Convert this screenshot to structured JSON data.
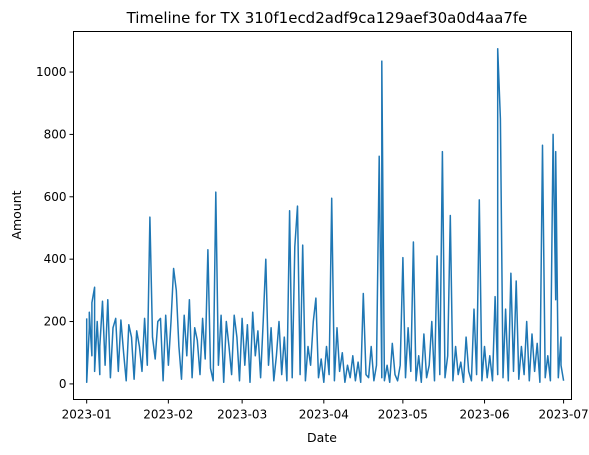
{
  "chart_data": {
    "type": "line",
    "title": "Timeline for TX 310f1ecd2adf9ca129aef30a0d4aa7fe",
    "xlabel": "Date",
    "ylabel": "Amount",
    "xlim": [
      "2022-12-27",
      "2023-07-04"
    ],
    "ylim": [
      -50,
      1130
    ],
    "x_ticks": [
      "2023-01",
      "2023-02",
      "2023-03",
      "2023-04",
      "2023-05",
      "2023-06",
      "2023-07"
    ],
    "y_ticks": [
      0,
      200,
      400,
      600,
      800,
      1000
    ],
    "grid": false,
    "color": "#1f77b4",
    "series": [
      {
        "points": [
          [
            "2023-01-01",
            210
          ],
          [
            "2023-01-01",
            5
          ],
          [
            "2023-01-02",
            180
          ],
          [
            "2023-01-02",
            230
          ],
          [
            "2023-01-03",
            90
          ],
          [
            "2023-01-03",
            260
          ],
          [
            "2023-01-04",
            310
          ],
          [
            "2023-01-04",
            40
          ],
          [
            "2023-01-05",
            200
          ],
          [
            "2023-01-06",
            30
          ],
          [
            "2023-01-06",
            120
          ],
          [
            "2023-01-07",
            265
          ],
          [
            "2023-01-08",
            60
          ],
          [
            "2023-01-09",
            270
          ],
          [
            "2023-01-10",
            20
          ],
          [
            "2023-01-11",
            180
          ],
          [
            "2023-01-12",
            210
          ],
          [
            "2023-01-13",
            40
          ],
          [
            "2023-01-14",
            205
          ],
          [
            "2023-01-15",
            100
          ],
          [
            "2023-01-16",
            10
          ],
          [
            "2023-01-17",
            190
          ],
          [
            "2023-01-18",
            150
          ],
          [
            "2023-01-19",
            15
          ],
          [
            "2023-01-20",
            170
          ],
          [
            "2023-01-21",
            120
          ],
          [
            "2023-01-22",
            40
          ],
          [
            "2023-01-23",
            210
          ],
          [
            "2023-01-24",
            60
          ],
          [
            "2023-01-25",
            535
          ],
          [
            "2023-01-26",
            150
          ],
          [
            "2023-01-27",
            80
          ],
          [
            "2023-01-28",
            200
          ],
          [
            "2023-01-29",
            210
          ],
          [
            "2023-01-30",
            10
          ],
          [
            "2023-01-31",
            220
          ],
          [
            "2023-02-01",
            60
          ],
          [
            "2023-02-02",
            200
          ],
          [
            "2023-02-03",
            370
          ],
          [
            "2023-02-04",
            300
          ],
          [
            "2023-02-05",
            120
          ],
          [
            "2023-02-06",
            15
          ],
          [
            "2023-02-07",
            220
          ],
          [
            "2023-02-08",
            90
          ],
          [
            "2023-02-09",
            270
          ],
          [
            "2023-02-10",
            20
          ],
          [
            "2023-02-11",
            180
          ],
          [
            "2023-02-12",
            140
          ],
          [
            "2023-02-13",
            30
          ],
          [
            "2023-02-14",
            210
          ],
          [
            "2023-02-15",
            80
          ],
          [
            "2023-02-16",
            430
          ],
          [
            "2023-02-17",
            50
          ],
          [
            "2023-02-18",
            10
          ],
          [
            "2023-02-19",
            615
          ],
          [
            "2023-02-20",
            60
          ],
          [
            "2023-02-21",
            220
          ],
          [
            "2023-02-22",
            5
          ],
          [
            "2023-02-23",
            200
          ],
          [
            "2023-02-24",
            120
          ],
          [
            "2023-02-25",
            30
          ],
          [
            "2023-02-26",
            220
          ],
          [
            "2023-02-27",
            150
          ],
          [
            "2023-02-28",
            10
          ],
          [
            "2023-03-01",
            210
          ],
          [
            "2023-03-02",
            60
          ],
          [
            "2023-03-03",
            190
          ],
          [
            "2023-03-04",
            5
          ],
          [
            "2023-03-05",
            230
          ],
          [
            "2023-03-06",
            90
          ],
          [
            "2023-03-07",
            170
          ],
          [
            "2023-03-08",
            20
          ],
          [
            "2023-03-09",
            200
          ],
          [
            "2023-03-10",
            400
          ],
          [
            "2023-03-11",
            60
          ],
          [
            "2023-03-12",
            180
          ],
          [
            "2023-03-13",
            10
          ],
          [
            "2023-03-14",
            90
          ],
          [
            "2023-03-15",
            200
          ],
          [
            "2023-03-16",
            30
          ],
          [
            "2023-03-17",
            150
          ],
          [
            "2023-03-18",
            10
          ],
          [
            "2023-03-19",
            555
          ],
          [
            "2023-03-20",
            20
          ],
          [
            "2023-03-21",
            440
          ],
          [
            "2023-03-22",
            570
          ],
          [
            "2023-03-23",
            30
          ],
          [
            "2023-03-24",
            445
          ],
          [
            "2023-03-25",
            10
          ],
          [
            "2023-03-26",
            120
          ],
          [
            "2023-03-27",
            60
          ],
          [
            "2023-03-28",
            200
          ],
          [
            "2023-03-29",
            275
          ],
          [
            "2023-03-30",
            20
          ],
          [
            "2023-03-31",
            80
          ],
          [
            "2023-04-01",
            5
          ],
          [
            "2023-04-02",
            120
          ],
          [
            "2023-04-03",
            30
          ],
          [
            "2023-04-04",
            595
          ],
          [
            "2023-04-05",
            10
          ],
          [
            "2023-04-06",
            180
          ],
          [
            "2023-04-07",
            40
          ],
          [
            "2023-04-08",
            100
          ],
          [
            "2023-04-09",
            5
          ],
          [
            "2023-04-10",
            60
          ],
          [
            "2023-04-11",
            20
          ],
          [
            "2023-04-12",
            90
          ],
          [
            "2023-04-13",
            10
          ],
          [
            "2023-04-14",
            70
          ],
          [
            "2023-04-15",
            5
          ],
          [
            "2023-04-16",
            290
          ],
          [
            "2023-04-17",
            30
          ],
          [
            "2023-04-18",
            20
          ],
          [
            "2023-04-19",
            120
          ],
          [
            "2023-04-20",
            10
          ],
          [
            "2023-04-21",
            60
          ],
          [
            "2023-04-22",
            730
          ],
          [
            "2023-04-23",
            20
          ],
          [
            "2023-04-23",
            1035
          ],
          [
            "2023-04-24",
            10
          ],
          [
            "2023-04-25",
            60
          ],
          [
            "2023-04-26",
            5
          ],
          [
            "2023-04-27",
            130
          ],
          [
            "2023-04-28",
            30
          ],
          [
            "2023-04-29",
            10
          ],
          [
            "2023-04-30",
            60
          ],
          [
            "2023-05-01",
            405
          ],
          [
            "2023-05-02",
            20
          ],
          [
            "2023-05-03",
            180
          ],
          [
            "2023-05-04",
            40
          ],
          [
            "2023-05-05",
            455
          ],
          [
            "2023-05-06",
            10
          ],
          [
            "2023-05-07",
            90
          ],
          [
            "2023-05-08",
            5
          ],
          [
            "2023-05-09",
            160
          ],
          [
            "2023-05-10",
            20
          ],
          [
            "2023-05-11",
            60
          ],
          [
            "2023-05-12",
            200
          ],
          [
            "2023-05-13",
            10
          ],
          [
            "2023-05-14",
            410
          ],
          [
            "2023-05-15",
            30
          ],
          [
            "2023-05-16",
            745
          ],
          [
            "2023-05-17",
            20
          ],
          [
            "2023-05-18",
            90
          ],
          [
            "2023-05-19",
            540
          ],
          [
            "2023-05-20",
            10
          ],
          [
            "2023-05-21",
            120
          ],
          [
            "2023-05-22",
            30
          ],
          [
            "2023-05-23",
            70
          ],
          [
            "2023-05-24",
            5
          ],
          [
            "2023-05-25",
            150
          ],
          [
            "2023-05-26",
            40
          ],
          [
            "2023-05-27",
            10
          ],
          [
            "2023-05-28",
            240
          ],
          [
            "2023-05-29",
            30
          ],
          [
            "2023-05-30",
            590
          ],
          [
            "2023-05-31",
            10
          ],
          [
            "2023-06-01",
            120
          ],
          [
            "2023-06-02",
            20
          ],
          [
            "2023-06-03",
            90
          ],
          [
            "2023-06-04",
            10
          ],
          [
            "2023-06-05",
            280
          ],
          [
            "2023-06-06",
            30
          ],
          [
            "2023-06-06",
            1075
          ],
          [
            "2023-06-07",
            850
          ],
          [
            "2023-06-08",
            20
          ],
          [
            "2023-06-09",
            240
          ],
          [
            "2023-06-10",
            10
          ],
          [
            "2023-06-11",
            355
          ],
          [
            "2023-06-12",
            40
          ],
          [
            "2023-06-13",
            330
          ],
          [
            "2023-06-14",
            15
          ],
          [
            "2023-06-15",
            120
          ],
          [
            "2023-06-16",
            30
          ],
          [
            "2023-06-17",
            200
          ],
          [
            "2023-06-18",
            10
          ],
          [
            "2023-06-19",
            160
          ],
          [
            "2023-06-20",
            40
          ],
          [
            "2023-06-21",
            130
          ],
          [
            "2023-06-22",
            5
          ],
          [
            "2023-06-23",
            765
          ],
          [
            "2023-06-24",
            20
          ],
          [
            "2023-06-25",
            90
          ],
          [
            "2023-06-26",
            10
          ],
          [
            "2023-06-27",
            800
          ],
          [
            "2023-06-28",
            270
          ],
          [
            "2023-06-28",
            745
          ],
          [
            "2023-06-29",
            20
          ],
          [
            "2023-06-30",
            150
          ],
          [
            "2023-06-30",
            60
          ],
          [
            "2023-07-01",
            10
          ]
        ]
      }
    ]
  }
}
